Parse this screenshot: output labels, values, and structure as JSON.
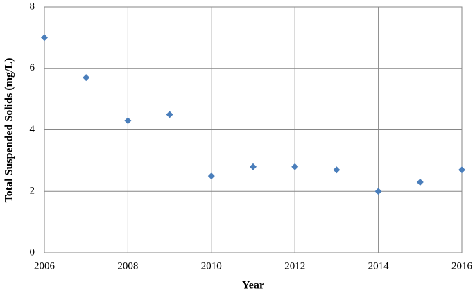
{
  "chart_data": {
    "type": "scatter",
    "x_label": "Year",
    "y_label": "Total Suspended Solids (mg/L)",
    "x": [
      2006,
      2007,
      2008,
      2009,
      2010,
      2011,
      2012,
      2013,
      2014,
      2015,
      2016
    ],
    "series": [
      {
        "color": "#4a7ebb",
        "values": [
          7.0,
          5.7,
          4.3,
          4.5,
          2.5,
          2.8,
          2.8,
          2.7,
          2.0,
          2.3,
          2.7
        ]
      }
    ],
    "xlim": [
      2006,
      2016
    ],
    "xticks": [
      2006,
      2008,
      2010,
      2012,
      2014,
      2016
    ],
    "ylim": [
      0,
      8
    ],
    "yticks": [
      0,
      2,
      4,
      6,
      8
    ],
    "grid": true
  }
}
